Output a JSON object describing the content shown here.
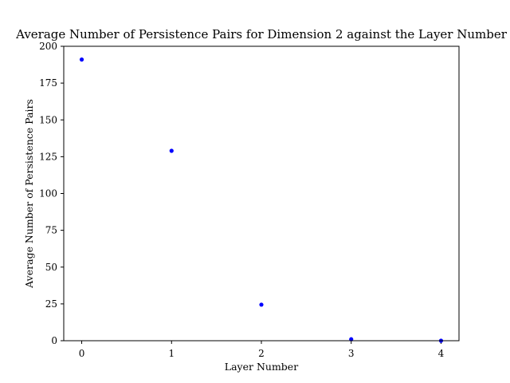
{
  "chart_data": {
    "type": "scatter",
    "title": "Average Number of Persistence Pairs for Dimension 2 against the Layer Number",
    "xlabel": "Layer Number",
    "ylabel": "Average Number of Persistence Pairs",
    "xlim": [
      -0.2,
      4.2
    ],
    "ylim": [
      0,
      200
    ],
    "xticks": [
      0,
      1,
      2,
      3,
      4
    ],
    "yticks": [
      0,
      25,
      50,
      75,
      100,
      125,
      150,
      175,
      200
    ],
    "grid": false,
    "legend": "none",
    "series": [
      {
        "color": "#0000ff",
        "marker": "dot",
        "x": [
          0,
          1,
          2,
          3,
          4
        ],
        "y": [
          191,
          129,
          24.5,
          1,
          0
        ]
      }
    ]
  }
}
